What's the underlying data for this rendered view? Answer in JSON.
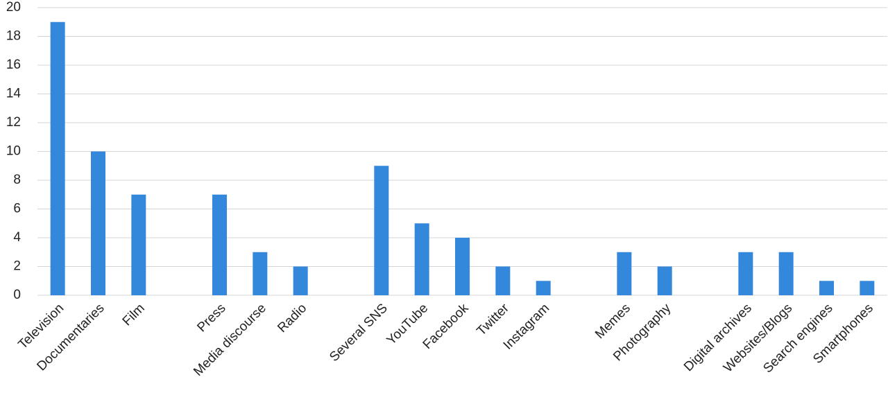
{
  "chart_data": {
    "type": "bar",
    "categories": [
      "Television",
      "Documentaries",
      "Film",
      null,
      "Press",
      "Media discourse",
      "Radio",
      null,
      "Several SNS",
      "YouTube",
      "Facebook",
      "Twitter",
      "Instagram",
      null,
      "Memes",
      "Photography",
      null,
      "Digital archives",
      "Websites/Blogs",
      "Search engines",
      "Smartphones"
    ],
    "values": [
      19,
      10,
      7,
      null,
      7,
      3,
      2,
      null,
      9,
      5,
      4,
      2,
      1,
      null,
      3,
      2,
      null,
      3,
      3,
      1,
      1
    ],
    "color": "#3488dc",
    "ylim": [
      0,
      20
    ],
    "yticks": [
      0,
      2,
      4,
      6,
      8,
      10,
      12,
      14,
      16,
      18,
      20
    ],
    "grid": true
  }
}
